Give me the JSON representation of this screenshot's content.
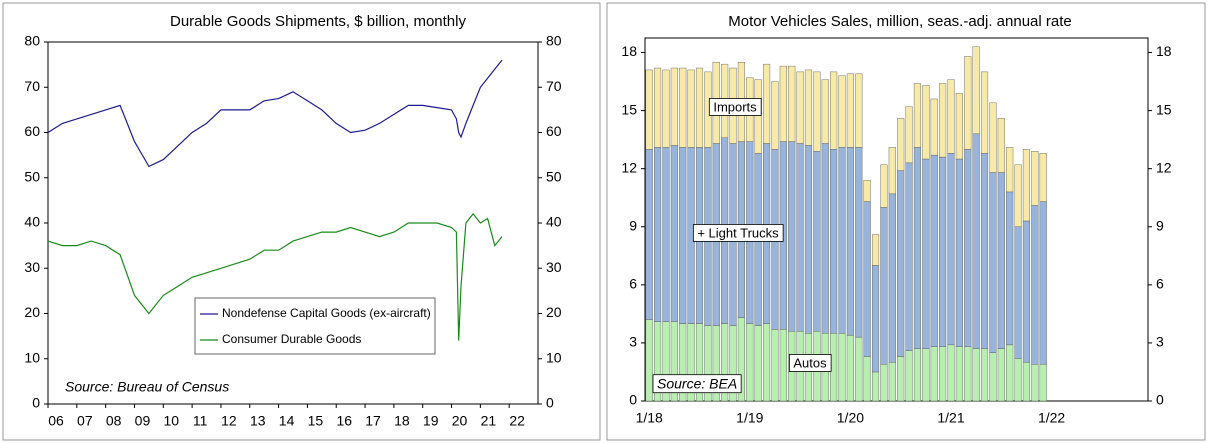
{
  "chart_data": [
    {
      "type": "line",
      "title": "Durable Goods Shipments, $ billion, monthly",
      "x": [
        2006,
        2006.5,
        2007,
        2007.5,
        2008,
        2008.5,
        2009,
        2009.5,
        2010,
        2010.5,
        2011,
        2011.5,
        2012,
        2012.5,
        2013,
        2013.5,
        2014,
        2014.5,
        2015,
        2015.5,
        2016,
        2016.5,
        2017,
        2017.5,
        2018,
        2018.5,
        2019,
        2019.5,
        2020,
        2020.17,
        2020.25,
        2020.33,
        2020.5,
        2020.75,
        2021,
        2021.25,
        2021.5,
        2021.75
      ],
      "series": [
        {
          "name": "Nondefense Capital Goods (ex-aircraft)",
          "color": "#1c1c8c",
          "values": [
            60,
            62,
            63,
            64,
            65,
            66,
            58,
            52.5,
            54,
            57,
            60,
            62,
            65,
            65,
            65,
            67,
            67.5,
            69,
            67,
            65,
            62,
            60,
            60.5,
            62,
            64,
            66,
            66,
            65.5,
            65,
            63,
            60,
            59,
            62,
            66,
            70,
            72,
            74,
            76
          ]
        },
        {
          "name": "Consumer Durable Goods",
          "color": "#1a8a1a",
          "values": [
            36,
            35,
            35,
            36,
            35,
            33,
            24,
            20,
            24,
            26,
            28,
            29,
            30,
            31,
            32,
            34,
            34,
            36,
            37,
            38,
            38,
            39,
            38,
            37,
            38,
            40,
            40,
            40,
            39,
            38,
            14,
            26,
            40,
            42,
            40,
            41,
            35,
            37
          ]
        }
      ],
      "xlim": [
        2006,
        2023
      ],
      "xticks": [
        {
          "value": 2006,
          "label": "06"
        },
        {
          "value": 2007,
          "label": "07"
        },
        {
          "value": 2008,
          "label": "08"
        },
        {
          "value": 2009,
          "label": "09"
        },
        {
          "value": 2010,
          "label": "10"
        },
        {
          "value": 2011,
          "label": "11"
        },
        {
          "value": 2012,
          "label": "12"
        },
        {
          "value": 2013,
          "label": "13"
        },
        {
          "value": 2014,
          "label": "14"
        },
        {
          "value": 2015,
          "label": "15"
        },
        {
          "value": 2016,
          "label": "16"
        },
        {
          "value": 2017,
          "label": "17"
        },
        {
          "value": 2018,
          "label": "18"
        },
        {
          "value": 2019,
          "label": "19"
        },
        {
          "value": 2020,
          "label": "20"
        },
        {
          "value": 2021,
          "label": "21"
        },
        {
          "value": 2022,
          "label": "22"
        }
      ],
      "ylim": [
        0,
        80
      ],
      "yticks": [
        0,
        10,
        20,
        30,
        40,
        50,
        60,
        70,
        80
      ],
      "legend": "lower center",
      "source": "Source: Bureau of Census"
    },
    {
      "type": "bar",
      "title": "Motor Vehicles Sales, million, seas.-adj. annual rate",
      "categories": [
        "1/18",
        null,
        null,
        null,
        null,
        null,
        null,
        null,
        null,
        null,
        null,
        null,
        "1/19",
        null,
        null,
        null,
        null,
        null,
        null,
        null,
        null,
        null,
        null,
        null,
        "1/20",
        null,
        null,
        null,
        null,
        null,
        null,
        null,
        null,
        null,
        null,
        null,
        "1/21",
        null,
        null,
        null,
        null,
        null,
        null,
        null,
        null,
        null,
        null,
        null,
        "1/22",
        null,
        null,
        null,
        null,
        null,
        null,
        null,
        null,
        null,
        null,
        null
      ],
      "series": [
        {
          "name": "Autos",
          "color": "#b8efb0",
          "values": [
            4.2,
            4.1,
            4.1,
            4.1,
            4.0,
            4.0,
            4.0,
            3.9,
            3.9,
            4.0,
            3.9,
            4.3,
            4.0,
            3.9,
            4.0,
            3.7,
            3.7,
            3.6,
            3.6,
            3.5,
            3.6,
            3.5,
            3.5,
            3.5,
            3.4,
            3.3,
            2.3,
            1.5,
            1.9,
            2.0,
            2.3,
            2.6,
            2.7,
            2.7,
            2.8,
            2.8,
            2.9,
            2.8,
            2.8,
            2.7,
            2.7,
            2.5,
            2.7,
            2.9,
            2.2,
            2.0,
            1.9,
            1.9,
            null,
            null,
            null,
            null,
            null,
            null,
            null,
            null,
            null,
            null,
            null,
            null
          ]
        },
        {
          "name": "+ Light Trucks",
          "color": "#98b4da",
          "values": [
            8.8,
            9.0,
            9.0,
            9.1,
            9.1,
            9.1,
            9.1,
            9.2,
            9.4,
            9.6,
            9.4,
            9.1,
            9.4,
            8.9,
            9.3,
            9.3,
            9.7,
            9.8,
            9.7,
            9.7,
            9.3,
            9.8,
            9.5,
            9.6,
            9.7,
            9.8,
            8.0,
            5.5,
            8.1,
            8.7,
            9.6,
            9.7,
            10.4,
            9.8,
            9.9,
            9.8,
            9.9,
            9.7,
            10.2,
            11.1,
            10.1,
            9.3,
            9.1,
            7.9,
            6.8,
            7.3,
            8.2,
            8.4,
            null,
            null,
            null,
            null,
            null,
            null,
            null,
            null,
            null,
            null,
            null,
            null
          ]
        },
        {
          "name": "Imports",
          "color": "#f7e9a8",
          "values": [
            4.1,
            4.1,
            4.0,
            4.0,
            4.1,
            4.0,
            4.1,
            3.9,
            4.2,
            3.8,
            3.9,
            4.1,
            3.3,
            3.8,
            4.1,
            3.5,
            3.9,
            3.9,
            3.7,
            3.9,
            4.1,
            3.3,
            4.0,
            3.7,
            3.8,
            3.8,
            1.1,
            1.6,
            2.2,
            2.4,
            2.7,
            2.9,
            3.3,
            3.8,
            2.9,
            3.8,
            3.8,
            3.4,
            4.8,
            4.5,
            4.2,
            3.6,
            2.8,
            2.3,
            3.2,
            3.7,
            2.8,
            2.5,
            null,
            null,
            null,
            null,
            null,
            null,
            null,
            null,
            null,
            null,
            null,
            null
          ]
        }
      ],
      "ylim": [
        0,
        18.75
      ],
      "yticks": [
        0,
        3,
        6,
        9,
        12,
        15,
        18
      ],
      "stacked": true,
      "source": "Source: BEA"
    }
  ]
}
